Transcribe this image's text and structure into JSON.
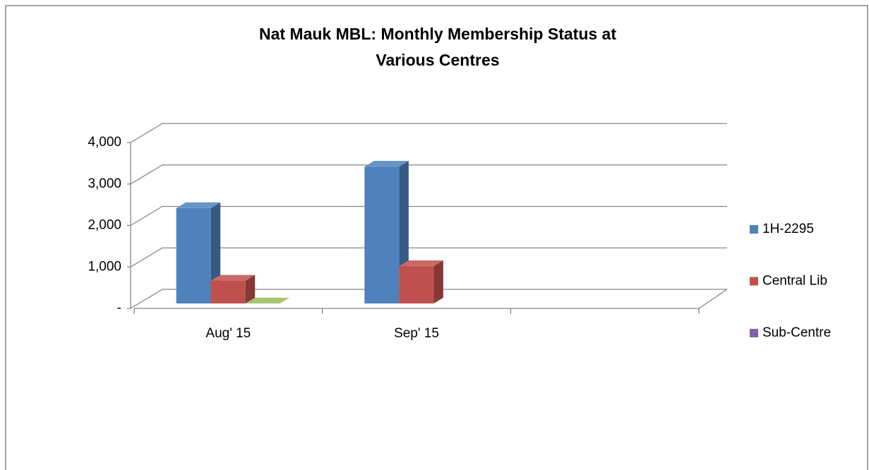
{
  "chart_data": {
    "type": "bar3d",
    "title": "Nat Mauk MBL: Monthly Membership Status at",
    "title_line2": "Various Centres",
    "categories": [
      "Aug' 15",
      "Sep' 15",
      null
    ],
    "series": [
      {
        "name": "1H-2295",
        "color": "#4f81bd",
        "values": [
          2300,
          3300,
          null
        ]
      },
      {
        "name": "Central Lib",
        "color": "#c0504d",
        "values": [
          550,
          900,
          null
        ]
      },
      {
        "name": "Sub-Centre",
        "color": "#8064a2",
        "values": [
          0,
          null,
          null
        ],
        "point_colors": [
          "#9bbb59",
          null,
          null
        ]
      }
    ],
    "ylim": [
      0,
      4000
    ],
    "yticks": [
      {
        "value": 0,
        "label": "-"
      },
      {
        "value": 1000,
        "label": "1,000"
      },
      {
        "value": 2000,
        "label": "2,000"
      },
      {
        "value": 3000,
        "label": "3,000"
      },
      {
        "value": 4000,
        "label": "4,000"
      }
    ],
    "grid": true,
    "legend": "right"
  }
}
